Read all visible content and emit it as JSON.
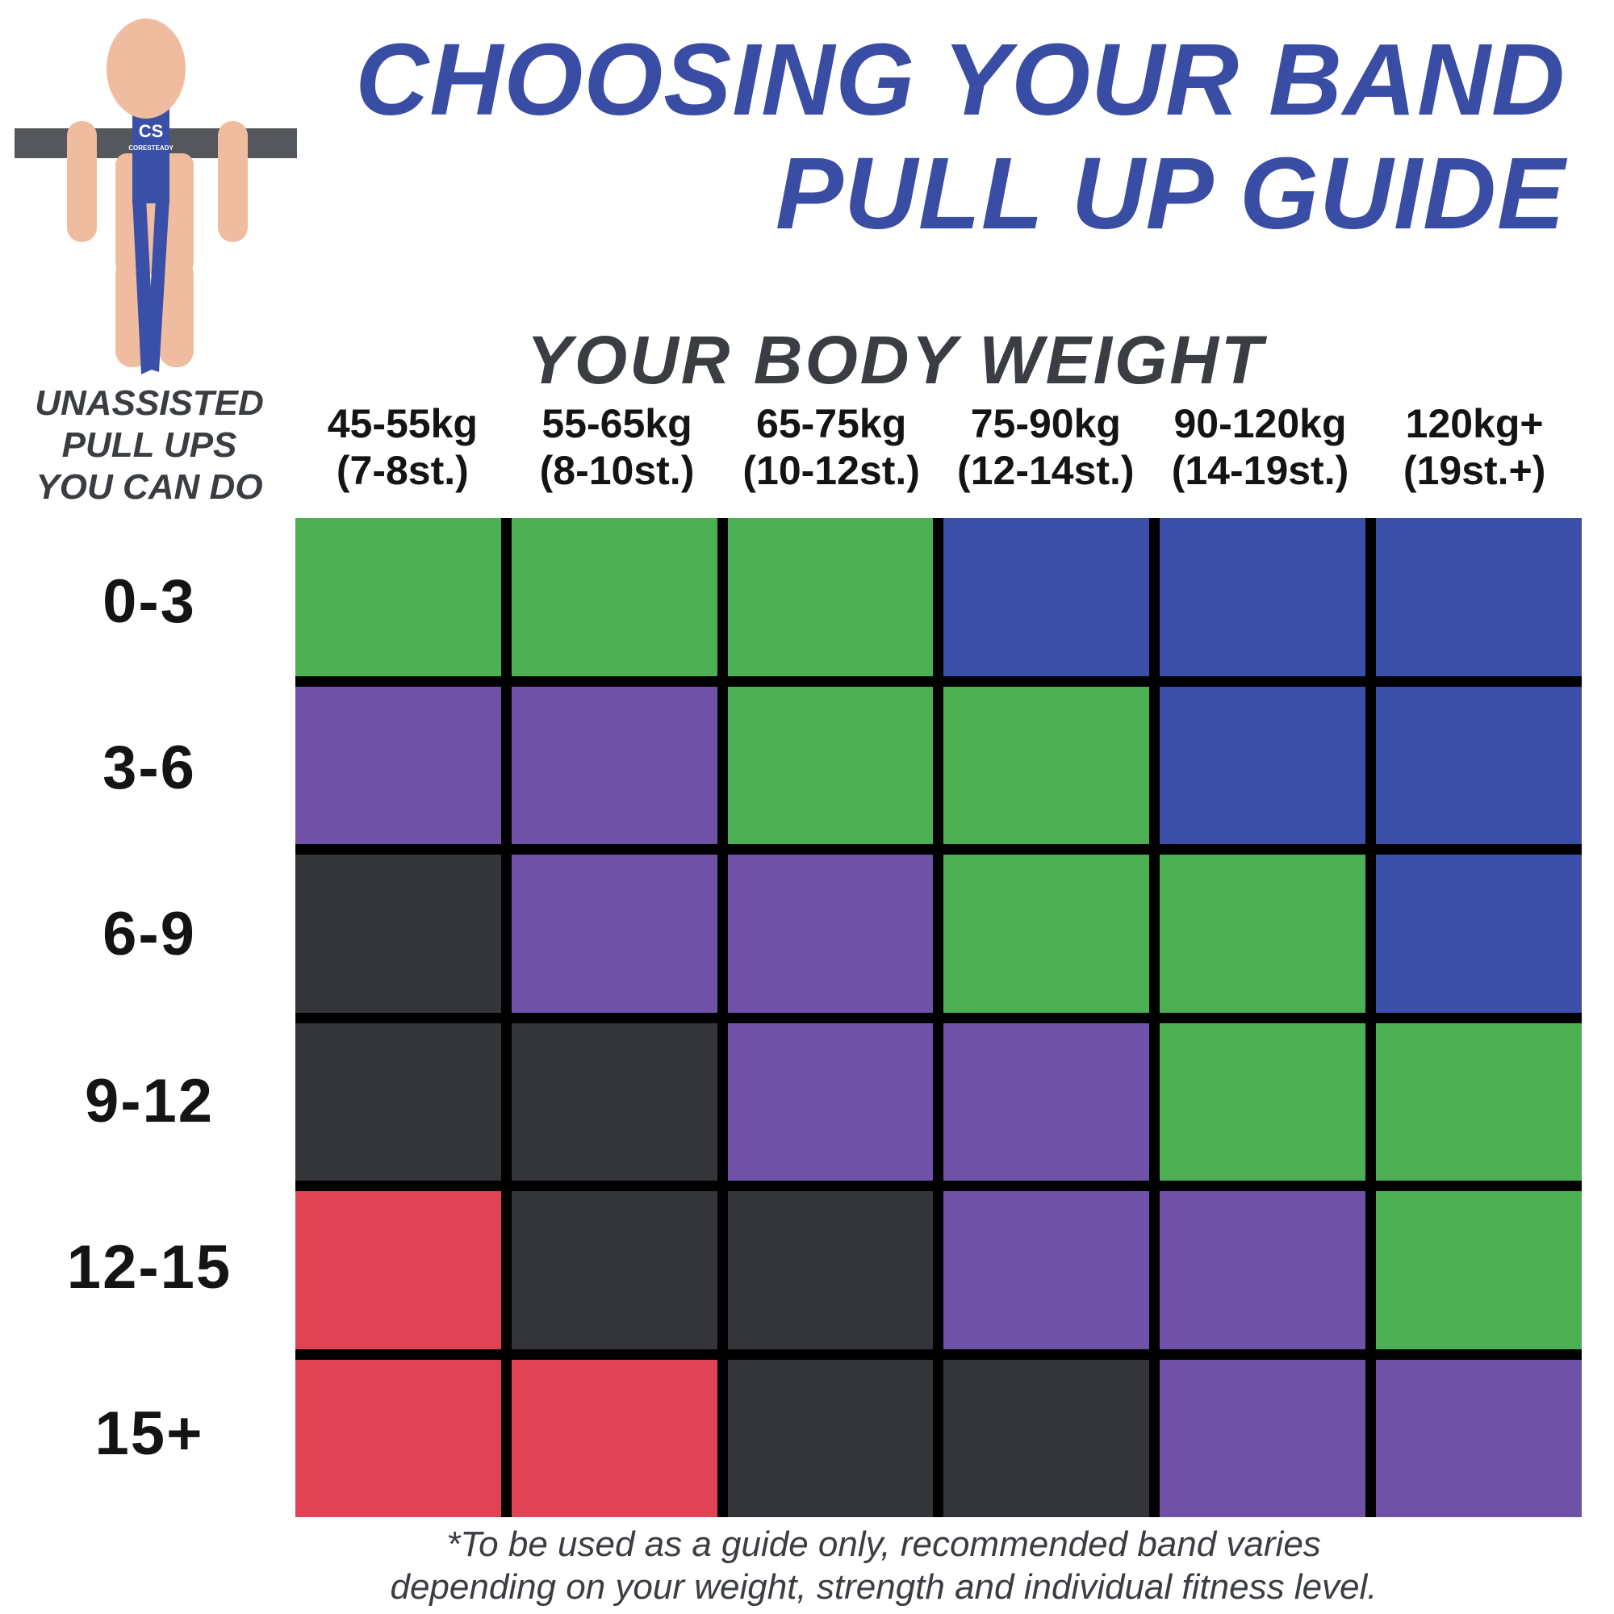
{
  "title": {
    "line1": "CHOOSING YOUR BAND",
    "line2": "PULL UP GUIDE"
  },
  "body_weight_header": "YOUR BODY WEIGHT",
  "row_axis_label": {
    "line1": "UNASSISTED",
    "line2": "PULL UPS",
    "line3": "YOU CAN DO"
  },
  "figure": {
    "logo_monogram": "CS",
    "logo_text": "CORESTEADY"
  },
  "columns": [
    {
      "kg": "45-55kg",
      "st": "(7-8st.)"
    },
    {
      "kg": "55-65kg",
      "st": "(8-10st.)"
    },
    {
      "kg": "65-75kg",
      "st": "(10-12st.)"
    },
    {
      "kg": "75-90kg",
      "st": "(12-14st.)"
    },
    {
      "kg": "90-120kg",
      "st": "(14-19st.)"
    },
    {
      "kg": "120kg+",
      "st": "(19st.+)"
    }
  ],
  "rows": [
    {
      "label": "0-3",
      "cells": [
        "green",
        "green",
        "green",
        "blue",
        "blue",
        "blue"
      ]
    },
    {
      "label": "3-6",
      "cells": [
        "purple",
        "purple",
        "green",
        "green",
        "blue",
        "blue"
      ]
    },
    {
      "label": "6-9",
      "cells": [
        "black",
        "purple",
        "purple",
        "green",
        "green",
        "blue"
      ]
    },
    {
      "label": "9-12",
      "cells": [
        "black",
        "black",
        "purple",
        "purple",
        "green",
        "green"
      ]
    },
    {
      "label": "12-15",
      "cells": [
        "red",
        "black",
        "black",
        "purple",
        "purple",
        "green"
      ]
    },
    {
      "label": "15+",
      "cells": [
        "red",
        "red",
        "black",
        "black",
        "purple",
        "purple"
      ]
    }
  ],
  "band_colors": {
    "green": "#4CAF54",
    "blue": "#3C4FA8",
    "purple": "#6F51A8",
    "black": "#333538",
    "red": "#E04355"
  },
  "ui_colors": {
    "title_blue": "#3A4DA4",
    "header_gray": "#3A3D42",
    "label_black": "#141414",
    "grid_line": "#000000",
    "skin": "#F0BC9F",
    "bar_gray": "#54575B",
    "band_blue": "#3A50A8"
  },
  "footnote": {
    "line1": "*To be used as a guide only, recommended band varies",
    "line2": "depending on your weight, strength and individual fitness level."
  },
  "chart_data": {
    "type": "heatmap",
    "title": "CHOOSING YOUR BAND PULL UP GUIDE",
    "x_axis_label": "YOUR BODY WEIGHT",
    "y_axis_label": "UNASSISTED PULL UPS YOU CAN DO",
    "x_categories": [
      "45-55kg (7-8st.)",
      "55-65kg (8-10st.)",
      "65-75kg (10-12st.)",
      "75-90kg (12-14st.)",
      "90-120kg (14-19st.)",
      "120kg+ (19st.+)"
    ],
    "y_categories": [
      "0-3",
      "3-6",
      "6-9",
      "9-12",
      "12-15",
      "15+"
    ],
    "values": [
      [
        "green",
        "green",
        "green",
        "blue",
        "blue",
        "blue"
      ],
      [
        "purple",
        "purple",
        "green",
        "green",
        "blue",
        "blue"
      ],
      [
        "black",
        "purple",
        "purple",
        "green",
        "green",
        "blue"
      ],
      [
        "black",
        "black",
        "purple",
        "purple",
        "green",
        "green"
      ],
      [
        "red",
        "black",
        "black",
        "purple",
        "purple",
        "green"
      ],
      [
        "red",
        "red",
        "black",
        "black",
        "purple",
        "purple"
      ]
    ],
    "value_meaning": "recommended resistance band colour"
  }
}
